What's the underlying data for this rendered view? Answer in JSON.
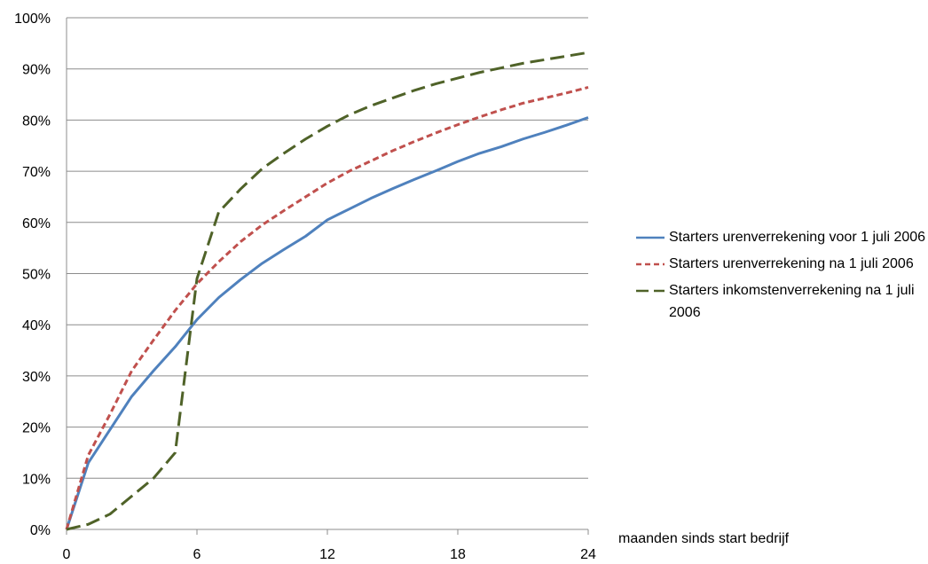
{
  "chart_data": {
    "type": "line",
    "title": "",
    "xlabel": "maanden sinds start bedrijf",
    "ylabel": "",
    "xlim": [
      0,
      24
    ],
    "ylim": [
      0,
      1
    ],
    "x_ticks": [
      "0",
      "6",
      "12",
      "18",
      "24"
    ],
    "x_tick_values": [
      0,
      6,
      12,
      18,
      24
    ],
    "y_ticks": [
      "0%",
      "10%",
      "20%",
      "30%",
      "40%",
      "50%",
      "60%",
      "70%",
      "80%",
      "90%",
      "100%"
    ],
    "y_tick_values": [
      0,
      0.1,
      0.2,
      0.3,
      0.4,
      0.5,
      0.6,
      0.7,
      0.8,
      0.9,
      1.0
    ],
    "grid": "horizontal",
    "legend_position": "right",
    "x": [
      0,
      1,
      2,
      3,
      4,
      5,
      6,
      7,
      8,
      9,
      10,
      11,
      12,
      13,
      14,
      15,
      16,
      17,
      18,
      19,
      20,
      21,
      22,
      23,
      24
    ],
    "series": [
      {
        "name": "Starters urenverrekening voor 1 juli 2006",
        "color": "#4f81bd",
        "dash": "solid",
        "values": [
          0,
          0.13,
          0.195,
          0.26,
          0.31,
          0.357,
          0.41,
          0.453,
          0.488,
          0.52,
          0.547,
          0.573,
          0.605,
          0.626,
          0.647,
          0.666,
          0.684,
          0.701,
          0.719,
          0.735,
          0.748,
          0.763,
          0.776,
          0.79,
          0.805
        ]
      },
      {
        "name": "Starters urenverrekening na 1 juli 2006",
        "color": "#c0504d",
        "dash": "short-dash",
        "values": [
          0,
          0.145,
          0.225,
          0.31,
          0.37,
          0.428,
          0.48,
          0.523,
          0.562,
          0.595,
          0.623,
          0.65,
          0.677,
          0.7,
          0.72,
          0.74,
          0.758,
          0.775,
          0.791,
          0.806,
          0.82,
          0.833,
          0.843,
          0.853,
          0.864
        ]
      },
      {
        "name": "Starters inkomstenverrekening na 1 juli 2006",
        "color": "#4f6228",
        "dash": "long-dash",
        "values": [
          0,
          0.01,
          0.03,
          0.065,
          0.1,
          0.15,
          0.49,
          0.62,
          0.665,
          0.705,
          0.735,
          0.763,
          0.788,
          0.81,
          0.828,
          0.843,
          0.858,
          0.871,
          0.882,
          0.893,
          0.902,
          0.911,
          0.918,
          0.925,
          0.932
        ]
      }
    ]
  }
}
